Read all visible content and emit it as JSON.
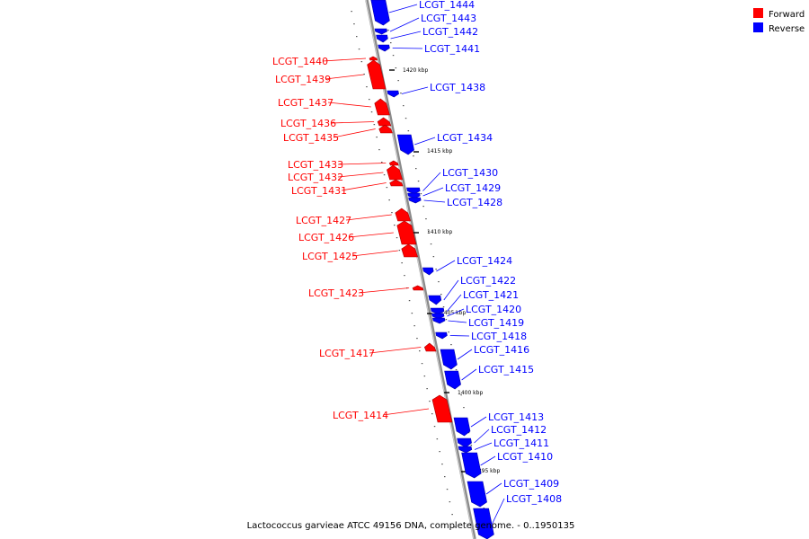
{
  "legend": {
    "forward": {
      "label": "Forward",
      "color": "#ff0000"
    },
    "reverse": {
      "label": "Reverse",
      "color": "#0000ff"
    }
  },
  "caption": "Lactococcus garvieae ATCC 49156 DNA, complete genome. - 0..1950135",
  "ticks": [
    "1420 kbp",
    "1415 kbp",
    "1410 kbp",
    "1405 kbp",
    "1400 kbp",
    "1395 kbp"
  ],
  "genes": [
    {
      "name": "LCGT_1444",
      "strand": "reverse"
    },
    {
      "name": "LCGT_1443",
      "strand": "reverse"
    },
    {
      "name": "LCGT_1442",
      "strand": "reverse"
    },
    {
      "name": "LCGT_1441",
      "strand": "reverse"
    },
    {
      "name": "LCGT_1440",
      "strand": "forward"
    },
    {
      "name": "LCGT_1439",
      "strand": "forward"
    },
    {
      "name": "LCGT_1438",
      "strand": "reverse"
    },
    {
      "name": "LCGT_1437",
      "strand": "forward"
    },
    {
      "name": "LCGT_1436",
      "strand": "forward"
    },
    {
      "name": "LCGT_1435",
      "strand": "forward"
    },
    {
      "name": "LCGT_1434",
      "strand": "reverse"
    },
    {
      "name": "LCGT_1433",
      "strand": "forward"
    },
    {
      "name": "LCGT_1432",
      "strand": "forward"
    },
    {
      "name": "LCGT_1431",
      "strand": "forward"
    },
    {
      "name": "LCGT_1430",
      "strand": "reverse"
    },
    {
      "name": "LCGT_1429",
      "strand": "reverse"
    },
    {
      "name": "LCGT_1428",
      "strand": "reverse"
    },
    {
      "name": "LCGT_1427",
      "strand": "forward"
    },
    {
      "name": "LCGT_1426",
      "strand": "forward"
    },
    {
      "name": "LCGT_1425",
      "strand": "forward"
    },
    {
      "name": "LCGT_1424",
      "strand": "reverse"
    },
    {
      "name": "LCGT_1423",
      "strand": "forward"
    },
    {
      "name": "LCGT_1422",
      "strand": "reverse"
    },
    {
      "name": "LCGT_1421",
      "strand": "reverse"
    },
    {
      "name": "LCGT_1420",
      "strand": "reverse"
    },
    {
      "name": "LCGT_1419",
      "strand": "reverse"
    },
    {
      "name": "LCGT_1418",
      "strand": "reverse"
    },
    {
      "name": "LCGT_1417",
      "strand": "forward"
    },
    {
      "name": "LCGT_1416",
      "strand": "reverse"
    },
    {
      "name": "LCGT_1415",
      "strand": "reverse"
    },
    {
      "name": "LCGT_1414",
      "strand": "forward"
    },
    {
      "name": "LCGT_1413",
      "strand": "reverse"
    },
    {
      "name": "LCGT_1412",
      "strand": "reverse"
    },
    {
      "name": "LCGT_1411",
      "strand": "reverse"
    },
    {
      "name": "LCGT_1410",
      "strand": "reverse"
    },
    {
      "name": "LCGT_1409",
      "strand": "reverse"
    },
    {
      "name": "LCGT_1408",
      "strand": "reverse"
    }
  ]
}
